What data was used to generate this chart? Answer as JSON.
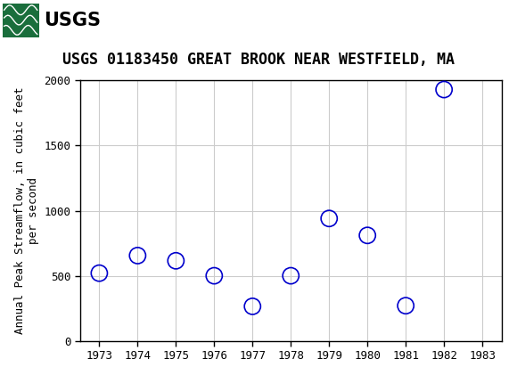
{
  "title": "USGS 01183450 GREAT BROOK NEAR WESTFIELD, MA",
  "ylabel_line1": "Annual Peak Streamflow, in cubic feet",
  "ylabel_line2": "per second",
  "years": [
    1973,
    1974,
    1975,
    1976,
    1977,
    1978,
    1979,
    1980,
    1981,
    1982
  ],
  "values": [
    520,
    655,
    615,
    500,
    265,
    500,
    940,
    810,
    270,
    1930
  ],
  "xlim": [
    1972.5,
    1983.5
  ],
  "ylim": [
    0,
    2000
  ],
  "xticks": [
    1973,
    1974,
    1975,
    1976,
    1977,
    1978,
    1979,
    1980,
    1981,
    1982,
    1983
  ],
  "yticks": [
    0,
    500,
    1000,
    1500,
    2000
  ],
  "marker_color": "#0000cc",
  "marker_size": 7,
  "header_color": "#1a6e3c",
  "title_fontsize": 12,
  "axis_label_fontsize": 9,
  "tick_fontsize": 9,
  "background_color": "#ffffff",
  "grid_color": "#cccccc",
  "usgs_text": "USGS",
  "usgs_logo_bg": "#ffffff",
  "header_text_color": "#ffffff"
}
